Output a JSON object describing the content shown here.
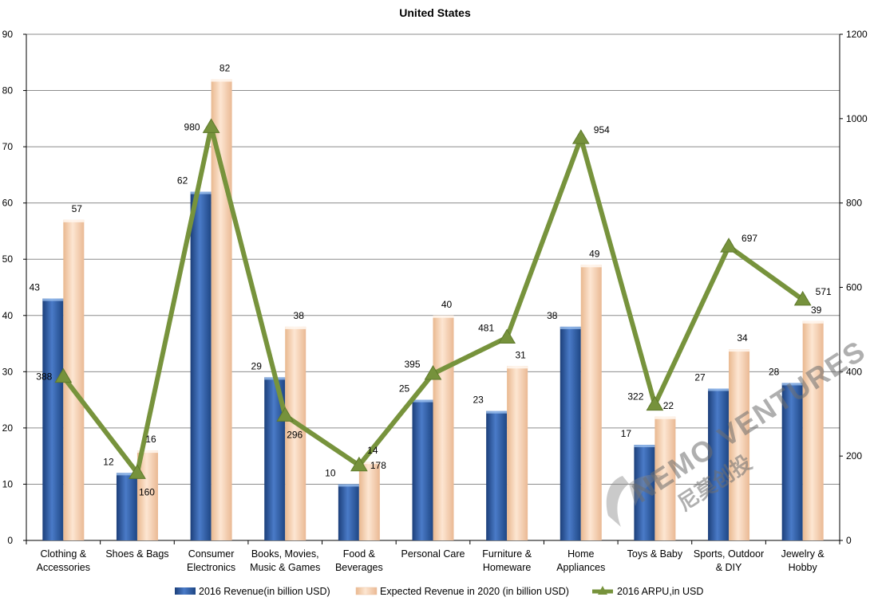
{
  "chart_data": {
    "type": "bar",
    "title": "United States",
    "categories": [
      [
        "Clothing &",
        "Accessories"
      ],
      [
        "Shoes & Bags"
      ],
      [
        "Consumer",
        "Electronics"
      ],
      [
        "Books, Movies,",
        "Music & Games"
      ],
      [
        "Food &",
        "Beverages"
      ],
      [
        "Personal Care"
      ],
      [
        "Furniture &",
        "Homeware"
      ],
      [
        "Home",
        "Appliances"
      ],
      [
        "Toys & Baby"
      ],
      [
        "Sports, Outdoor",
        "& DIY"
      ],
      [
        "Jewelry &",
        "Hobby"
      ]
    ],
    "series": [
      {
        "name": "2016 Revenue(in billion USD)",
        "type": "bar",
        "axis": "left",
        "color": "#2f5da8",
        "values": [
          43,
          12,
          62,
          29,
          10,
          25,
          23,
          38,
          17,
          27,
          28
        ]
      },
      {
        "name": "Expected Revenue in 2020 (in billion USD)",
        "type": "bar",
        "axis": "left",
        "color": "#f8d2b0",
        "values": [
          57,
          16,
          82,
          38,
          14,
          40,
          31,
          49,
          22,
          34,
          39
        ]
      },
      {
        "name": "2016 ARPU,in USD",
        "type": "line",
        "axis": "right",
        "color": "#77933c",
        "values": [
          388,
          160,
          980,
          296,
          178,
          395,
          481,
          954,
          322,
          697,
          571
        ]
      }
    ],
    "y_left": {
      "min": 0,
      "max": 90,
      "step": 10
    },
    "y_right": {
      "min": 0,
      "max": 1200,
      "step": 200
    },
    "grid": true,
    "legend_position": "bottom"
  },
  "watermark": {
    "text": "NEMO VENTURES",
    "subtext": "尼莫创投"
  }
}
